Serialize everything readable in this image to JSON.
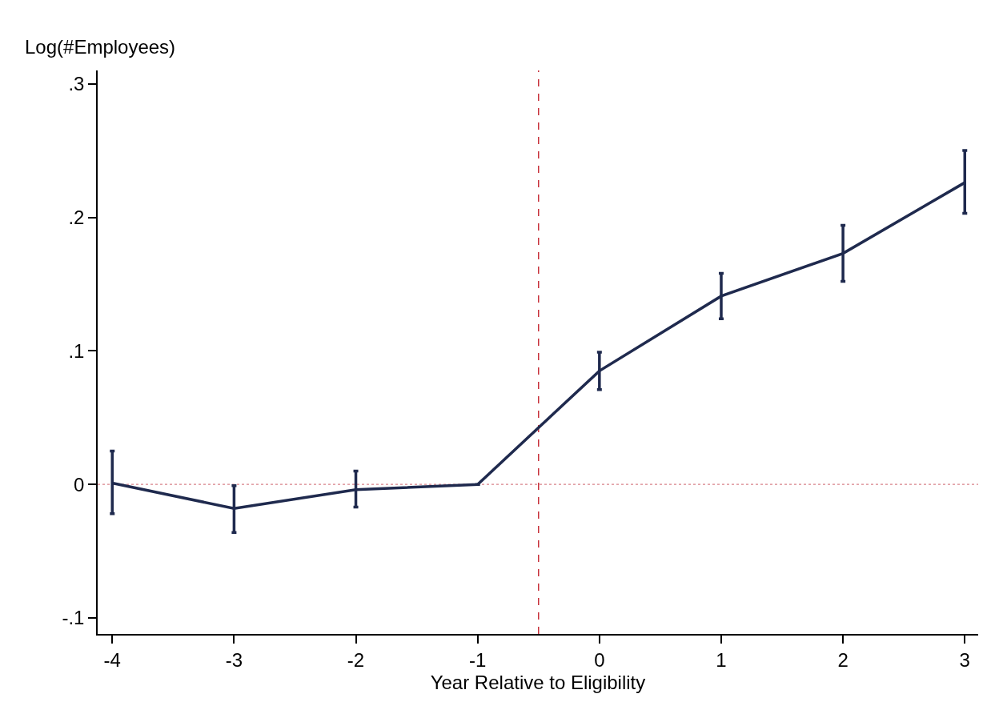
{
  "chart_data": {
    "type": "line",
    "xlabel": "Year Relative to Eligibility",
    "ylabel": "Log(#Employees)",
    "x": [
      -4,
      -3,
      -2,
      -1,
      0,
      1,
      2,
      3
    ],
    "series": [
      {
        "color": "#1f2a4e",
        "values": [
          0.001,
          -0.018,
          -0.004,
          0,
          0.085,
          0.141,
          0.173,
          0.226
        ],
        "errors": [
          [
            -0.022,
            0.025
          ],
          [
            -0.036,
            -0.001
          ],
          [
            -0.017,
            0.01
          ],
          null,
          [
            0.071,
            0.099
          ],
          [
            0.124,
            0.158
          ],
          [
            0.152,
            0.194
          ],
          [
            0.203,
            0.25
          ]
        ]
      }
    ],
    "xlim": [
      -4.12,
      3.11
    ],
    "xticks": [
      -4,
      -3,
      -2,
      -1,
      0,
      1,
      2,
      3
    ],
    "ylim": [
      -0.112,
      0.31
    ],
    "yticks": [
      {
        "value": -0.1,
        "label": "-.1"
      },
      0,
      {
        "value": 0.1,
        "label": ".1"
      },
      {
        "value": 0.2,
        "label": ".2"
      },
      {
        "value": 0.3,
        "label": ".3"
      }
    ],
    "ref_lines": [
      {
        "axis": "x",
        "value": -0.5,
        "color": "#c8323c",
        "line_style": "dashed"
      },
      {
        "axis": "y",
        "value": 0,
        "color": "#d9828a",
        "line_style": "dotted"
      }
    ],
    "grid": false,
    "marker": "none",
    "line_style": "solid"
  }
}
